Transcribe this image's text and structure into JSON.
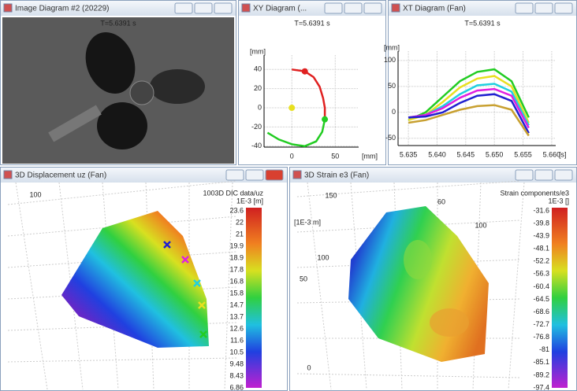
{
  "windows": [
    {
      "title": "Image Diagram #2 (20229)",
      "time": "T=5.6391 s"
    },
    {
      "title": "XY Diagram (...",
      "time": "T=5.6391 s",
      "unit_y": "[mm]",
      "unit_x": "[mm]"
    },
    {
      "title": "XT Diagram (Fan)",
      "time": "T=5.6391 s",
      "unit_y": "[mm]",
      "unit_x": "[s]"
    },
    {
      "title": "3D Displacement uz (Fan)",
      "axis_labels": [
        "100",
        "100"
      ],
      "legend_title": "3D DIC data/uz",
      "legend_unit": "1E-3 [m]",
      "legend_values": [
        23.6,
        22,
        21,
        19.9,
        18.9,
        17.8,
        16.8,
        15.8,
        14.7,
        13.7,
        12.6,
        11.6,
        10.5,
        9.48,
        8.43,
        6.86
      ]
    },
    {
      "title": "3D Strain e3 (Fan)",
      "axis_labels": [
        "150",
        "60",
        "100",
        "[1E-3 m]",
        "100",
        "50",
        "0"
      ],
      "legend_title": "Strain components/e3",
      "legend_unit": "1E-3 []",
      "legend_values": [
        -31.6,
        -39.8,
        -43.9,
        -48.1,
        -52.2,
        -56.3,
        -60.4,
        -64.5,
        -68.6,
        -72.7,
        -76.8,
        -81,
        -85.1,
        -89.2,
        -97.4
      ]
    }
  ],
  "xy_chart": {
    "type": "line",
    "xlim": [
      -32,
      77
    ],
    "ylim": [
      -41,
      55
    ],
    "xticks": [
      0,
      50
    ],
    "yticks": [
      -40,
      -20,
      0,
      20,
      40
    ],
    "grid": true,
    "series": [
      {
        "color": "#e02020",
        "x": [
          0,
          15,
          25,
          32,
          36,
          38,
          38
        ],
        "values": [
          40,
          38,
          32,
          22,
          10,
          0,
          -12
        ]
      },
      {
        "color": "#22cc22",
        "x": [
          38,
          35,
          28,
          15,
          0,
          -15,
          -28
        ],
        "values": [
          -12,
          -25,
          -35,
          -40,
          -38,
          -33,
          -26
        ]
      }
    ],
    "points": [
      {
        "color": "#e02020",
        "x": 15,
        "y": 38
      },
      {
        "color": "#22cc22",
        "x": 38,
        "y": -12
      },
      {
        "color": "#e8e020",
        "x": 0,
        "y": 0
      }
    ]
  },
  "xt_chart": {
    "type": "line",
    "xlim": [
      5.6332,
      5.6607
    ],
    "ylim": [
      -64,
      118
    ],
    "xticks": [
      5.635,
      {
        "value": 5.64,
        "label": "5.640"
      },
      5.645,
      {
        "value": 5.65,
        "label": "5.650"
      },
      5.655,
      {
        "value": 5.66,
        "label": "5.660"
      }
    ],
    "yticks": [
      -50,
      0,
      50,
      100
    ],
    "grid": true,
    "x": [
      5.635,
      5.638,
      5.641,
      5.644,
      5.647,
      5.65,
      5.653,
      5.656
    ],
    "series": [
      {
        "color": "#22cc22",
        "values": [
          -15,
          0,
          30,
          60,
          78,
          83,
          60,
          -10
        ]
      },
      {
        "color": "#e8e020",
        "values": [
          -15,
          -5,
          20,
          48,
          65,
          70,
          50,
          -20
        ]
      },
      {
        "color": "#20d0e0",
        "values": [
          -10,
          -5,
          12,
          35,
          52,
          55,
          40,
          -25
        ]
      },
      {
        "color": "#e020e0",
        "values": [
          -10,
          -5,
          8,
          28,
          42,
          45,
          32,
          -30
        ]
      },
      {
        "color": "#2020d0",
        "values": [
          -10,
          -8,
          0,
          18,
          32,
          35,
          22,
          -40
        ]
      },
      {
        "color": "#c8a030",
        "values": [
          -20,
          -15,
          -5,
          5,
          12,
          14,
          5,
          -45
        ]
      }
    ]
  }
}
